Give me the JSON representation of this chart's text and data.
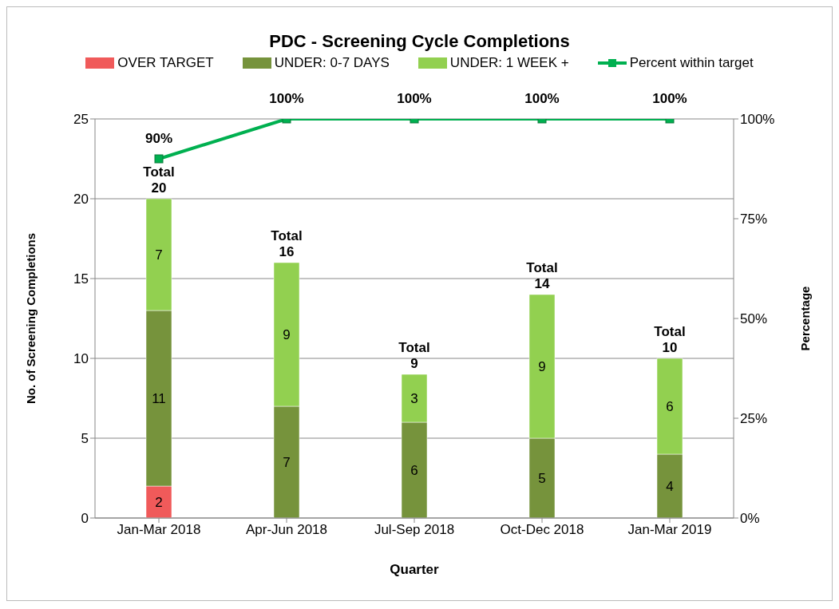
{
  "chart_data": {
    "type": "bar",
    "title": "PDC - Screening Cycle Completions",
    "xlabel": "Quarter",
    "ylabel": "No. of Screening Completions",
    "y2label": "Percentage",
    "categories": [
      "Jan-Mar 2018",
      "Apr-Jun 2018",
      "Jul-Sep 2018",
      "Oct-Dec 2018",
      "Jan-Mar 2019"
    ],
    "stacked": true,
    "series": [
      {
        "name": "OVER TARGET",
        "color": "#f05a5a",
        "values": [
          2,
          0,
          0,
          0,
          0
        ],
        "value_labels": [
          "2",
          null,
          null,
          null,
          null
        ]
      },
      {
        "name": "UNDER: 0-7 DAYS",
        "color": "#76933c",
        "values": [
          11,
          7,
          6,
          5,
          4
        ],
        "value_labels": [
          "11",
          "7",
          "6",
          "5",
          "4"
        ]
      },
      {
        "name": "UNDER: 1 WEEK +",
        "color": "#92d050",
        "values": [
          7,
          9,
          3,
          9,
          6
        ],
        "value_labels": [
          "7",
          "9",
          "3",
          "9",
          "6"
        ]
      },
      {
        "name": "Percent within target",
        "type": "line",
        "axis": "y2",
        "color": "#00b050",
        "marker": "square",
        "line_style": "solid",
        "values": [
          90,
          100,
          100,
          100,
          100
        ],
        "value_labels": [
          "90%",
          "100%",
          "100%",
          "100%",
          "100%"
        ]
      }
    ],
    "totals": [
      "Total\n20",
      "Total\n16",
      "Total\n9",
      "Total\n14",
      "Total\n10"
    ],
    "ylim": [
      0,
      25
    ],
    "yticks": [
      0,
      5,
      10,
      15,
      20,
      25
    ],
    "y2lim": [
      0,
      100
    ],
    "y2ticks": [
      {
        "value": 0,
        "label": "0%"
      },
      {
        "value": 25,
        "label": "25%"
      },
      {
        "value": 50,
        "label": "50%"
      },
      {
        "value": 75,
        "label": "75%"
      },
      {
        "value": 100,
        "label": "100%"
      }
    ],
    "grid": "y",
    "legend": "top"
  }
}
